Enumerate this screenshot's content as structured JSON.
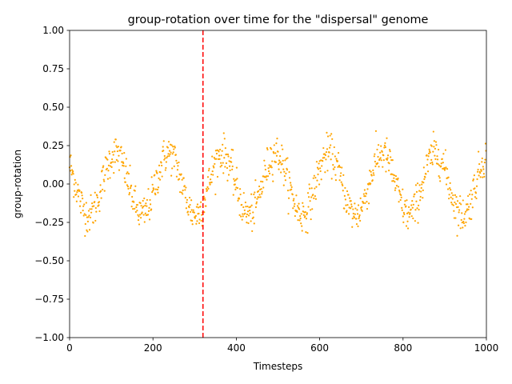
{
  "chart_data": {
    "type": "scatter",
    "title": "group-rotation over time for the \"dispersal\" genome",
    "xlabel": "Timesteps",
    "ylabel": "group-rotation",
    "xlim": [
      0,
      1000
    ],
    "ylim": [
      -1.0,
      1.0
    ],
    "x_ticks": [
      0,
      200,
      400,
      600,
      800,
      1000
    ],
    "x_tick_labels": [
      "0",
      "200",
      "400",
      "600",
      "800",
      "1000"
    ],
    "y_ticks": [
      -1.0,
      -0.75,
      -0.5,
      -0.25,
      0.0,
      0.25,
      0.5,
      0.75,
      1.0
    ],
    "y_tick_labels": [
      "−1.00",
      "−0.75",
      "−0.50",
      "−0.25",
      "0.00",
      "0.25",
      "0.50",
      "0.75",
      "1.00"
    ],
    "grid": false,
    "legend": "none",
    "marker_color": "#ffa500",
    "reference_line": {
      "x": 320,
      "color": "#ff0000",
      "style": "dashed"
    },
    "series": [
      {
        "values_description_free": true,
        "signal": {
          "period": 128,
          "amplitude": 0.2,
          "phase_peak_x": 110,
          "noise": 0.06,
          "count": 1000
        }
      }
    ]
  }
}
